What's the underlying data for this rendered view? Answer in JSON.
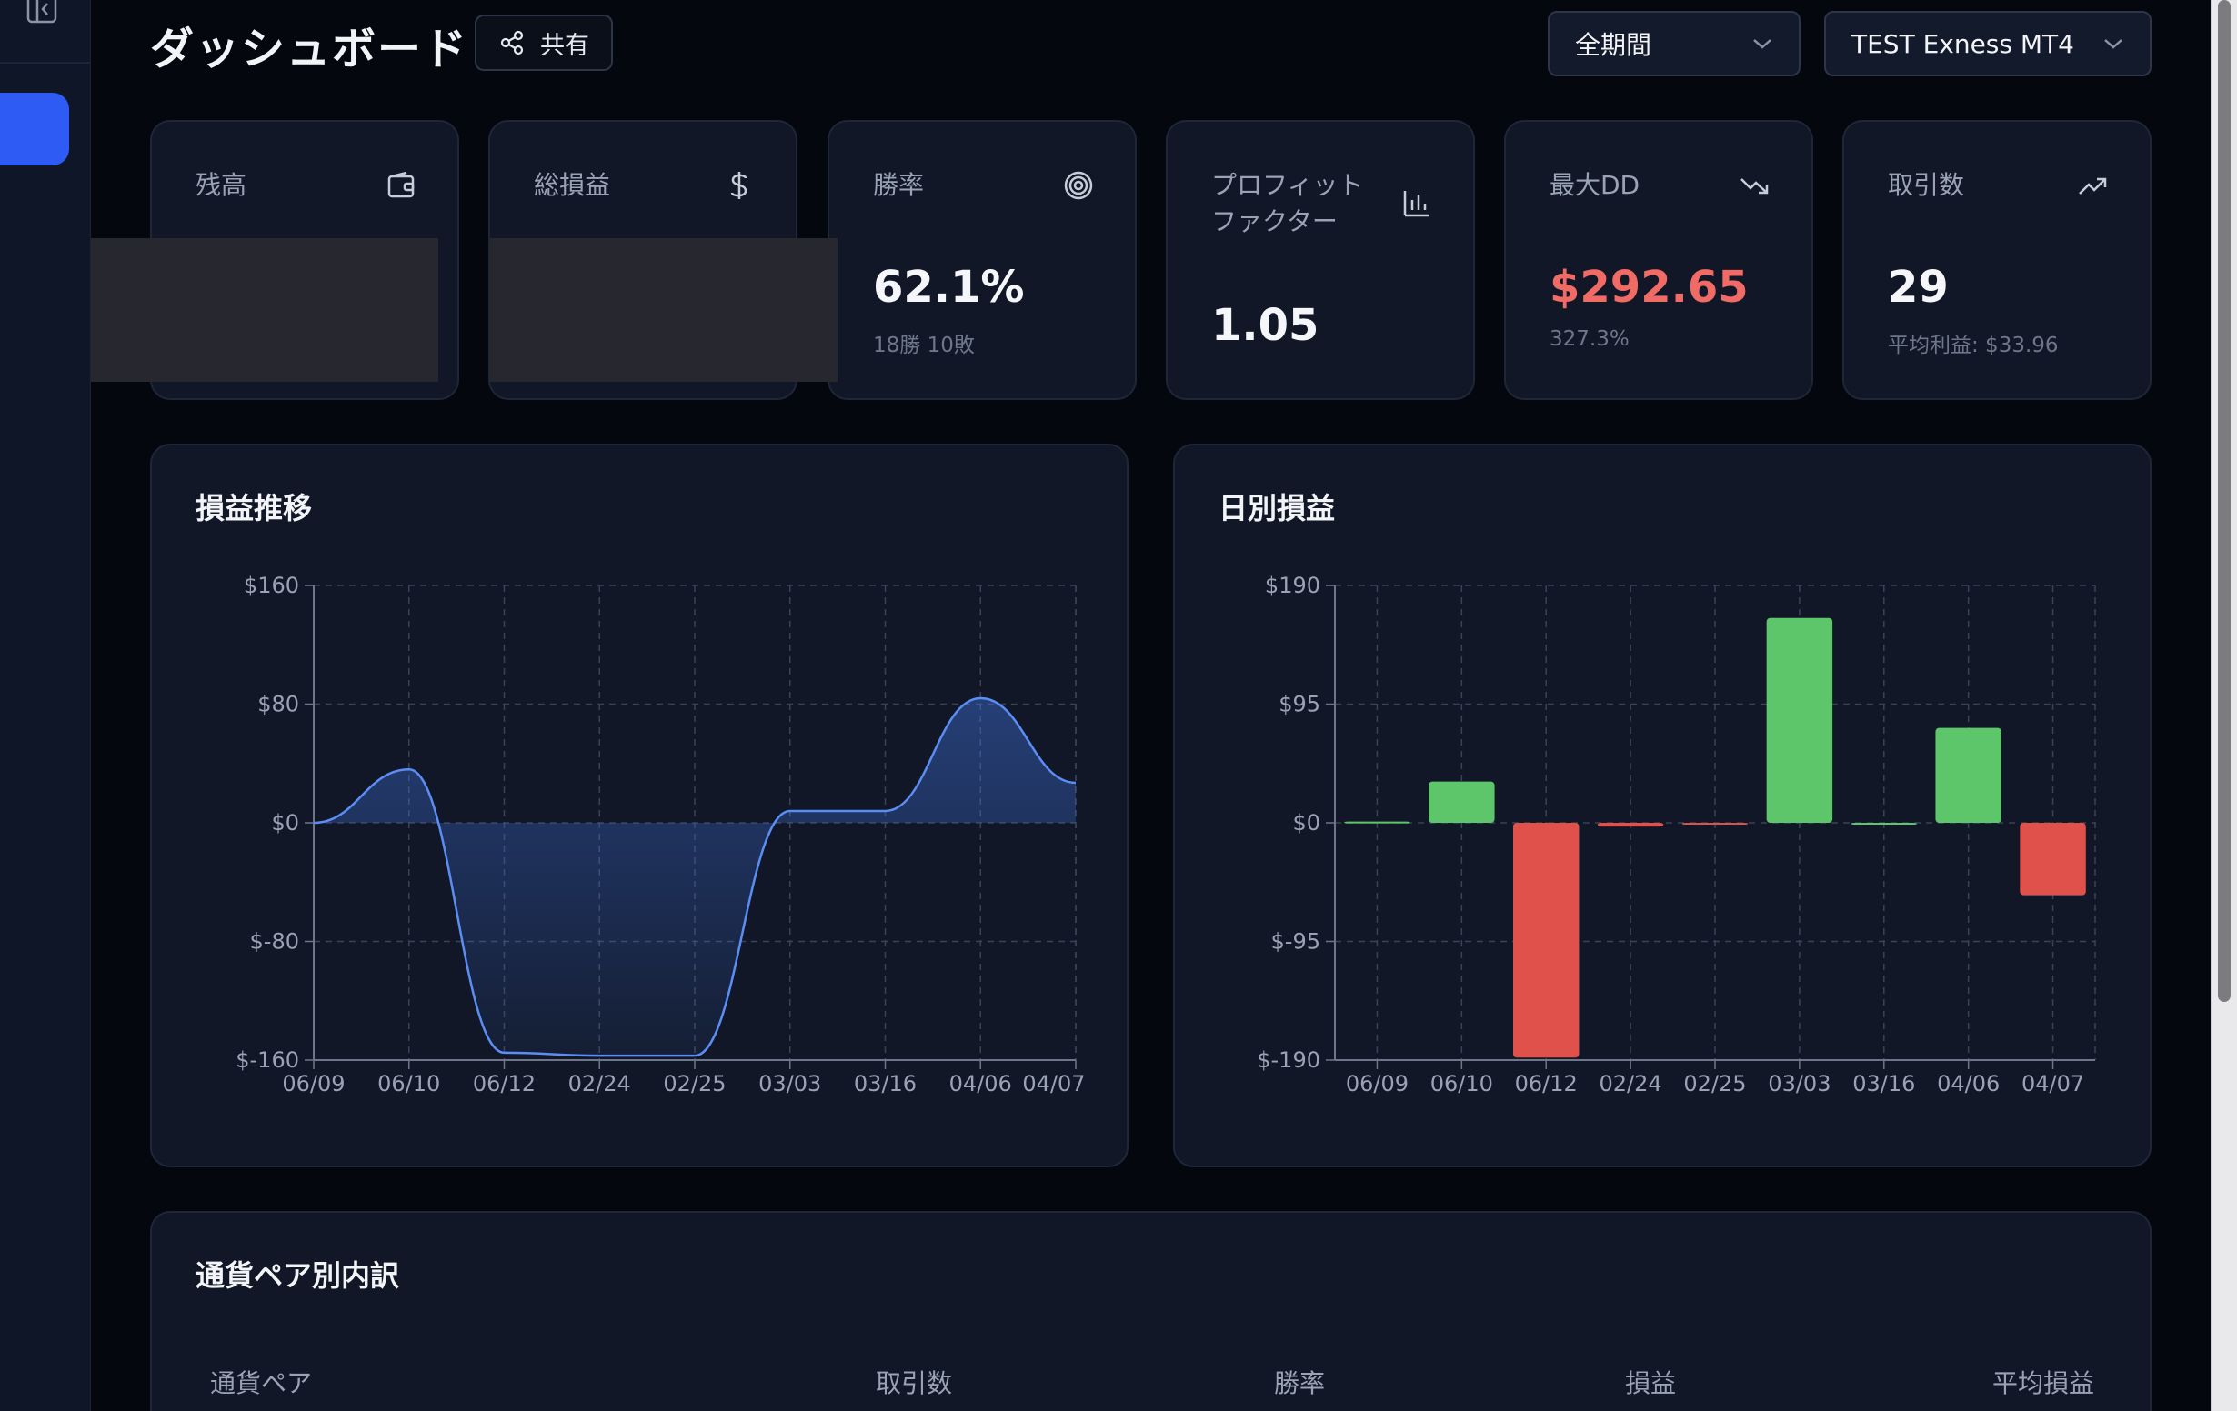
{
  "header": {
    "title": "ダッシュボード",
    "share_label": "共有",
    "period_select": "全期間",
    "account_select": "TEST Exness MT4"
  },
  "stats": {
    "balance": {
      "label": "残高",
      "icon": "wallet-icon"
    },
    "total_pnl": {
      "label": "総損益",
      "icon": "dollar-icon"
    },
    "win_rate": {
      "label": "勝率",
      "value": "62.1%",
      "sub": "18勝 10敗",
      "icon": "target-icon"
    },
    "profit_factor": {
      "label_line1": "プロフィット",
      "label_line2": "ファクター",
      "value": "1.05",
      "icon": "bar-chart-icon"
    },
    "max_dd": {
      "label": "最大DD",
      "value": "$292.65",
      "sub": "327.3%",
      "icon": "trending-down-icon",
      "color": "#f06a66"
    },
    "trades": {
      "label": "取引数",
      "value": "29",
      "sub": "平均利益: $33.96",
      "icon": "trending-up-icon"
    }
  },
  "charts": {
    "pnl_trend_title": "損益推移",
    "daily_pnl_title": "日別損益"
  },
  "chart_data": [
    {
      "type": "area",
      "title": "損益推移",
      "categories": [
        "06/09",
        "06/10",
        "06/12",
        "02/24",
        "02/25",
        "03/03",
        "03/16",
        "04/06",
        "04/07"
      ],
      "values": [
        0,
        36,
        -155,
        -157,
        -157,
        8,
        8,
        84,
        27
      ],
      "y_ticks": [
        "$160",
        "$80",
        "$0",
        "$-80",
        "$-160"
      ],
      "ylim": [
        -160,
        160
      ],
      "grid": true,
      "color": "#5b8ef5"
    },
    {
      "type": "bar",
      "title": "日別損益",
      "categories": [
        "06/09",
        "06/10",
        "06/12",
        "02/24",
        "02/25",
        "03/03",
        "03/16",
        "04/06",
        "04/07"
      ],
      "values": [
        1,
        33,
        -188,
        -3,
        -1,
        164,
        0,
        76,
        -58
      ],
      "y_ticks": [
        "$190",
        "$95",
        "$0",
        "$-95",
        "$-190"
      ],
      "ylim": [
        -190,
        190
      ],
      "grid": true,
      "positive_color": "#5dc66a",
      "negative_color": "#e0514c"
    }
  ],
  "breakdown": {
    "title": "通貨ペア別内訳",
    "columns": [
      "通貨ペア",
      "取引数",
      "勝率",
      "損益",
      "平均損益"
    ]
  }
}
